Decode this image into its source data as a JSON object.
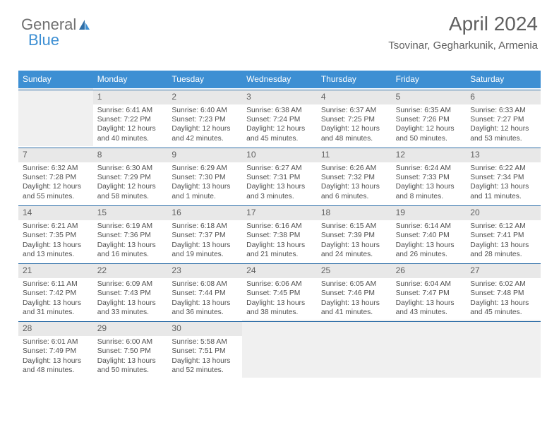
{
  "brand": {
    "word1": "General",
    "word2": "Blue"
  },
  "header": {
    "title": "April 2024",
    "location": "Tsovinar, Gegharkunik, Armenia"
  },
  "colors": {
    "header_bg": "#3d8fd3",
    "header_text": "#ffffff",
    "daynum_bg": "#e8e8e8",
    "daynum_border": "#2f6fa8",
    "empty_bg": "#f0f0f0",
    "text": "#505050"
  },
  "day_names": [
    "Sunday",
    "Monday",
    "Tuesday",
    "Wednesday",
    "Thursday",
    "Friday",
    "Saturday"
  ],
  "weeks": [
    [
      {
        "empty": true
      },
      {
        "n": "1",
        "sr": "Sunrise: 6:41 AM",
        "ss": "Sunset: 7:22 PM",
        "d1": "Daylight: 12 hours",
        "d2": "and 40 minutes."
      },
      {
        "n": "2",
        "sr": "Sunrise: 6:40 AM",
        "ss": "Sunset: 7:23 PM",
        "d1": "Daylight: 12 hours",
        "d2": "and 42 minutes."
      },
      {
        "n": "3",
        "sr": "Sunrise: 6:38 AM",
        "ss": "Sunset: 7:24 PM",
        "d1": "Daylight: 12 hours",
        "d2": "and 45 minutes."
      },
      {
        "n": "4",
        "sr": "Sunrise: 6:37 AM",
        "ss": "Sunset: 7:25 PM",
        "d1": "Daylight: 12 hours",
        "d2": "and 48 minutes."
      },
      {
        "n": "5",
        "sr": "Sunrise: 6:35 AM",
        "ss": "Sunset: 7:26 PM",
        "d1": "Daylight: 12 hours",
        "d2": "and 50 minutes."
      },
      {
        "n": "6",
        "sr": "Sunrise: 6:33 AM",
        "ss": "Sunset: 7:27 PM",
        "d1": "Daylight: 12 hours",
        "d2": "and 53 minutes."
      }
    ],
    [
      {
        "n": "7",
        "sr": "Sunrise: 6:32 AM",
        "ss": "Sunset: 7:28 PM",
        "d1": "Daylight: 12 hours",
        "d2": "and 55 minutes."
      },
      {
        "n": "8",
        "sr": "Sunrise: 6:30 AM",
        "ss": "Sunset: 7:29 PM",
        "d1": "Daylight: 12 hours",
        "d2": "and 58 minutes."
      },
      {
        "n": "9",
        "sr": "Sunrise: 6:29 AM",
        "ss": "Sunset: 7:30 PM",
        "d1": "Daylight: 13 hours",
        "d2": "and 1 minute."
      },
      {
        "n": "10",
        "sr": "Sunrise: 6:27 AM",
        "ss": "Sunset: 7:31 PM",
        "d1": "Daylight: 13 hours",
        "d2": "and 3 minutes."
      },
      {
        "n": "11",
        "sr": "Sunrise: 6:26 AM",
        "ss": "Sunset: 7:32 PM",
        "d1": "Daylight: 13 hours",
        "d2": "and 6 minutes."
      },
      {
        "n": "12",
        "sr": "Sunrise: 6:24 AM",
        "ss": "Sunset: 7:33 PM",
        "d1": "Daylight: 13 hours",
        "d2": "and 8 minutes."
      },
      {
        "n": "13",
        "sr": "Sunrise: 6:22 AM",
        "ss": "Sunset: 7:34 PM",
        "d1": "Daylight: 13 hours",
        "d2": "and 11 minutes."
      }
    ],
    [
      {
        "n": "14",
        "sr": "Sunrise: 6:21 AM",
        "ss": "Sunset: 7:35 PM",
        "d1": "Daylight: 13 hours",
        "d2": "and 13 minutes."
      },
      {
        "n": "15",
        "sr": "Sunrise: 6:19 AM",
        "ss": "Sunset: 7:36 PM",
        "d1": "Daylight: 13 hours",
        "d2": "and 16 minutes."
      },
      {
        "n": "16",
        "sr": "Sunrise: 6:18 AM",
        "ss": "Sunset: 7:37 PM",
        "d1": "Daylight: 13 hours",
        "d2": "and 19 minutes."
      },
      {
        "n": "17",
        "sr": "Sunrise: 6:16 AM",
        "ss": "Sunset: 7:38 PM",
        "d1": "Daylight: 13 hours",
        "d2": "and 21 minutes."
      },
      {
        "n": "18",
        "sr": "Sunrise: 6:15 AM",
        "ss": "Sunset: 7:39 PM",
        "d1": "Daylight: 13 hours",
        "d2": "and 24 minutes."
      },
      {
        "n": "19",
        "sr": "Sunrise: 6:14 AM",
        "ss": "Sunset: 7:40 PM",
        "d1": "Daylight: 13 hours",
        "d2": "and 26 minutes."
      },
      {
        "n": "20",
        "sr": "Sunrise: 6:12 AM",
        "ss": "Sunset: 7:41 PM",
        "d1": "Daylight: 13 hours",
        "d2": "and 28 minutes."
      }
    ],
    [
      {
        "n": "21",
        "sr": "Sunrise: 6:11 AM",
        "ss": "Sunset: 7:42 PM",
        "d1": "Daylight: 13 hours",
        "d2": "and 31 minutes."
      },
      {
        "n": "22",
        "sr": "Sunrise: 6:09 AM",
        "ss": "Sunset: 7:43 PM",
        "d1": "Daylight: 13 hours",
        "d2": "and 33 minutes."
      },
      {
        "n": "23",
        "sr": "Sunrise: 6:08 AM",
        "ss": "Sunset: 7:44 PM",
        "d1": "Daylight: 13 hours",
        "d2": "and 36 minutes."
      },
      {
        "n": "24",
        "sr": "Sunrise: 6:06 AM",
        "ss": "Sunset: 7:45 PM",
        "d1": "Daylight: 13 hours",
        "d2": "and 38 minutes."
      },
      {
        "n": "25",
        "sr": "Sunrise: 6:05 AM",
        "ss": "Sunset: 7:46 PM",
        "d1": "Daylight: 13 hours",
        "d2": "and 41 minutes."
      },
      {
        "n": "26",
        "sr": "Sunrise: 6:04 AM",
        "ss": "Sunset: 7:47 PM",
        "d1": "Daylight: 13 hours",
        "d2": "and 43 minutes."
      },
      {
        "n": "27",
        "sr": "Sunrise: 6:02 AM",
        "ss": "Sunset: 7:48 PM",
        "d1": "Daylight: 13 hours",
        "d2": "and 45 minutes."
      }
    ],
    [
      {
        "n": "28",
        "sr": "Sunrise: 6:01 AM",
        "ss": "Sunset: 7:49 PM",
        "d1": "Daylight: 13 hours",
        "d2": "and 48 minutes."
      },
      {
        "n": "29",
        "sr": "Sunrise: 6:00 AM",
        "ss": "Sunset: 7:50 PM",
        "d1": "Daylight: 13 hours",
        "d2": "and 50 minutes."
      },
      {
        "n": "30",
        "sr": "Sunrise: 5:58 AM",
        "ss": "Sunset: 7:51 PM",
        "d1": "Daylight: 13 hours",
        "d2": "and 52 minutes."
      },
      {
        "empty": true
      },
      {
        "empty": true
      },
      {
        "empty": true
      },
      {
        "empty": true
      }
    ]
  ]
}
